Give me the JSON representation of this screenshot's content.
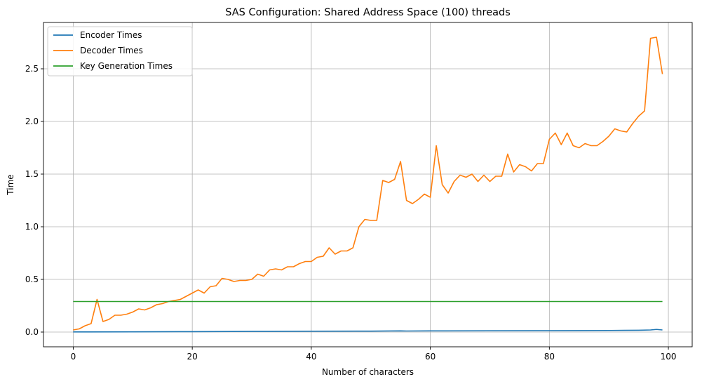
{
  "chart_data": {
    "type": "line",
    "title": "SAS Configuration: Shared Address Space (100) threads",
    "xlabel": "Number of characters",
    "ylabel": "Time",
    "xlim": [
      -5,
      104
    ],
    "ylim": [
      -0.14,
      2.94
    ],
    "xticks": [
      0,
      20,
      40,
      60,
      80,
      100
    ],
    "yticks": [
      0.0,
      0.5,
      1.0,
      1.5,
      2.0,
      2.5
    ],
    "xtick_labels": [
      "0",
      "20",
      "40",
      "60",
      "80",
      "100"
    ],
    "ytick_labels": [
      "0.0",
      "0.5",
      "1.0",
      "1.5",
      "2.0",
      "2.5"
    ],
    "grid": true,
    "legend_position": "top-left",
    "series": [
      {
        "name": "Encoder Times",
        "color": "#1f77b4",
        "x": [
          0,
          10,
          20,
          30,
          40,
          50,
          55,
          56,
          60,
          70,
          80,
          85,
          90,
          95,
          97,
          98,
          99
        ],
        "y": [
          0.001,
          0.002,
          0.004,
          0.006,
          0.008,
          0.009,
          0.011,
          0.01,
          0.011,
          0.012,
          0.013,
          0.014,
          0.015,
          0.017,
          0.02,
          0.025,
          0.02
        ]
      },
      {
        "name": "Decoder Times",
        "color": "#ff7f0e",
        "x": [
          0,
          1,
          2,
          3,
          4,
          5,
          6,
          7,
          8,
          9,
          10,
          11,
          12,
          13,
          14,
          15,
          16,
          17,
          18,
          19,
          20,
          21,
          22,
          23,
          24,
          25,
          26,
          27,
          28,
          29,
          30,
          31,
          32,
          33,
          34,
          35,
          36,
          37,
          38,
          39,
          40,
          41,
          42,
          43,
          44,
          45,
          46,
          47,
          48,
          49,
          50,
          51,
          52,
          53,
          54,
          55,
          56,
          57,
          58,
          59,
          60,
          61,
          62,
          63,
          64,
          65,
          66,
          67,
          68,
          69,
          70,
          71,
          72,
          73,
          74,
          75,
          76,
          77,
          78,
          79,
          80,
          81,
          82,
          83,
          84,
          85,
          86,
          87,
          88,
          89,
          90,
          91,
          92,
          93,
          94,
          95,
          96,
          97,
          98,
          99
        ],
        "y": [
          0.02,
          0.03,
          0.06,
          0.08,
          0.31,
          0.1,
          0.12,
          0.16,
          0.16,
          0.17,
          0.19,
          0.22,
          0.21,
          0.23,
          0.26,
          0.27,
          0.29,
          0.3,
          0.31,
          0.34,
          0.37,
          0.4,
          0.37,
          0.43,
          0.44,
          0.51,
          0.5,
          0.48,
          0.49,
          0.49,
          0.5,
          0.55,
          0.53,
          0.59,
          0.6,
          0.59,
          0.62,
          0.62,
          0.65,
          0.67,
          0.67,
          0.71,
          0.72,
          0.8,
          0.74,
          0.77,
          0.77,
          0.8,
          1.0,
          1.07,
          1.06,
          1.06,
          1.44,
          1.42,
          1.45,
          1.62,
          1.25,
          1.22,
          1.26,
          1.31,
          1.28,
          1.77,
          1.4,
          1.32,
          1.43,
          1.49,
          1.47,
          1.5,
          1.43,
          1.49,
          1.43,
          1.48,
          1.48,
          1.69,
          1.52,
          1.59,
          1.57,
          1.53,
          1.6,
          1.6,
          1.83,
          1.89,
          1.78,
          1.89,
          1.77,
          1.75,
          1.79,
          1.77,
          1.77,
          1.81,
          1.86,
          1.93,
          1.91,
          1.9,
          1.98,
          2.05,
          2.1,
          2.79,
          2.8,
          2.45
        ]
      },
      {
        "name": "Key Generation Times",
        "color": "#2ca02c",
        "x": [
          0,
          99
        ],
        "y": [
          0.29,
          0.29
        ]
      }
    ]
  }
}
